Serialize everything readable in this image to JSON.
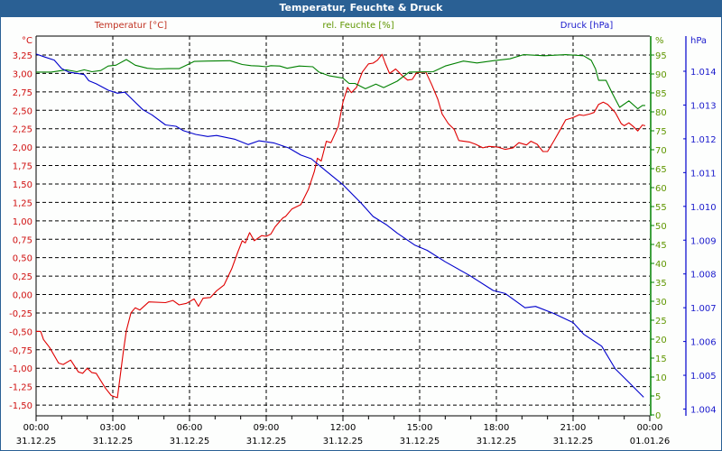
{
  "window": {
    "title": "Temperatur, Feuchte & Druck"
  },
  "colors": {
    "temperature": "#e00000",
    "temperature_axis": "#d01010",
    "humidity": "#008000",
    "humidity_axis": "#5f9600",
    "pressure": "#0000cc",
    "pressure_axis": "#1a1acc",
    "titlebar": "#2a6094"
  },
  "chart_data": {
    "type": "line",
    "title": "Temperatur, Feuchte & Druck",
    "series_labels": {
      "temperature": "Temperatur [°C]",
      "humidity": "rel. Feuchte [%]",
      "pressure": "Druck [hPa]"
    },
    "x_axis": {
      "unit": "hours since 31.12.25 00:00",
      "range": [
        0,
        24
      ],
      "ticks": [
        {
          "h": 0,
          "time": "00:00",
          "date": "31.12.25"
        },
        {
          "h": 3,
          "time": "03:00",
          "date": "31.12.25"
        },
        {
          "h": 6,
          "time": "06:00",
          "date": "31.12.25"
        },
        {
          "h": 9,
          "time": "09:00",
          "date": "31.12.25"
        },
        {
          "h": 12,
          "time": "12:00",
          "date": "31.12.25"
        },
        {
          "h": 15,
          "time": "15:00",
          "date": "31.12.25"
        },
        {
          "h": 18,
          "time": "18:00",
          "date": "31.12.25"
        },
        {
          "h": 21,
          "time": "21:00",
          "date": "31.12.25"
        },
        {
          "h": 24,
          "time": "00:00",
          "date": "01.01.26"
        }
      ]
    },
    "y_left": {
      "unit_label": "°C",
      "range": [
        -1.65,
        3.5
      ],
      "ticks": [
        {
          "v": 3.25,
          "label": "3,25"
        },
        {
          "v": 3.0,
          "label": "3,00"
        },
        {
          "v": 2.75,
          "label": "2,75"
        },
        {
          "v": 2.5,
          "label": "2,50"
        },
        {
          "v": 2.25,
          "label": "2,25"
        },
        {
          "v": 2.0,
          "label": "2,00"
        },
        {
          "v": 1.75,
          "label": "1,75"
        },
        {
          "v": 1.5,
          "label": "1,50"
        },
        {
          "v": 1.25,
          "label": "1,25"
        },
        {
          "v": 1.0,
          "label": "1,00"
        },
        {
          "v": 0.75,
          "label": "0,75"
        },
        {
          "v": 0.5,
          "label": "0,50"
        },
        {
          "v": 0.25,
          "label": "0,25"
        },
        {
          "v": 0.0,
          "label": "0,00"
        },
        {
          "v": -0.25,
          "label": "-0,25"
        },
        {
          "v": -0.5,
          "label": "-0,50"
        },
        {
          "v": -0.75,
          "label": "-0,75"
        },
        {
          "v": -1.0,
          "label": "-1,00"
        },
        {
          "v": -1.25,
          "label": "-1,25"
        },
        {
          "v": -1.5,
          "label": "-1,50"
        }
      ]
    },
    "y_right_humidity": {
      "unit_label": "%",
      "range": [
        0,
        100
      ],
      "ticks": [
        "95",
        "90",
        "85",
        "80",
        "75",
        "70",
        "65",
        "60",
        "55",
        "50",
        "45",
        "40",
        "35",
        "30",
        "25",
        "20",
        "15",
        "10",
        "5",
        "0"
      ]
    },
    "y_right_pressure": {
      "unit_label": "hPa",
      "range": [
        1003.8,
        1015.0
      ],
      "ticks": [
        {
          "v": 1014,
          "label": "1.014"
        },
        {
          "v": 1013,
          "label": "1.013"
        },
        {
          "v": 1012,
          "label": "1.012"
        },
        {
          "v": 1011,
          "label": "1.011"
        },
        {
          "v": 1010,
          "label": "1.010"
        },
        {
          "v": 1009,
          "label": "1.009"
        },
        {
          "v": 1008,
          "label": "1.008"
        },
        {
          "v": 1007,
          "label": "1.007"
        },
        {
          "v": 1006,
          "label": "1.006"
        },
        {
          "v": 1005,
          "label": "1.005"
        },
        {
          "v": 1004,
          "label": "1.004"
        }
      ]
    },
    "grid": true,
    "series": [
      {
        "name": "temperature",
        "values": [
          [
            0,
            -0.5
          ],
          [
            0.18,
            -0.5
          ],
          [
            0.29,
            -0.61
          ],
          [
            0.53,
            -0.72
          ],
          [
            0.88,
            -0.93
          ],
          [
            1.06,
            -0.95
          ],
          [
            1.35,
            -0.89
          ],
          [
            1.65,
            -1.05
          ],
          [
            1.82,
            -1.07
          ],
          [
            2.0,
            -1.0
          ],
          [
            2.18,
            -1.06
          ],
          [
            2.35,
            -1.07
          ],
          [
            2.71,
            -1.27
          ],
          [
            2.94,
            -1.37
          ],
          [
            3.18,
            -1.4
          ],
          [
            3.41,
            -0.78
          ],
          [
            3.53,
            -0.49
          ],
          [
            3.71,
            -0.25
          ],
          [
            3.88,
            -0.18
          ],
          [
            4.06,
            -0.21
          ],
          [
            4.41,
            -0.1
          ],
          [
            5.06,
            -0.11
          ],
          [
            5.35,
            -0.08
          ],
          [
            5.59,
            -0.14
          ],
          [
            5.88,
            -0.12
          ],
          [
            6.18,
            -0.06
          ],
          [
            6.35,
            -0.16
          ],
          [
            6.53,
            -0.05
          ],
          [
            6.82,
            -0.04
          ],
          [
            7.06,
            0.05
          ],
          [
            7.35,
            0.13
          ],
          [
            7.65,
            0.35
          ],
          [
            7.88,
            0.57
          ],
          [
            8.06,
            0.73
          ],
          [
            8.18,
            0.7
          ],
          [
            8.35,
            0.84
          ],
          [
            8.53,
            0.73
          ],
          [
            8.82,
            0.8
          ],
          [
            9.0,
            0.79
          ],
          [
            9.18,
            0.82
          ],
          [
            9.35,
            0.92
          ],
          [
            9.65,
            1.04
          ],
          [
            9.76,
            1.06
          ],
          [
            10.0,
            1.16
          ],
          [
            10.35,
            1.22
          ],
          [
            10.65,
            1.43
          ],
          [
            10.88,
            1.67
          ],
          [
            11.0,
            1.85
          ],
          [
            11.15,
            1.81
          ],
          [
            11.35,
            2.08
          ],
          [
            11.53,
            2.06
          ],
          [
            11.82,
            2.28
          ],
          [
            12.0,
            2.61
          ],
          [
            12.18,
            2.81
          ],
          [
            12.33,
            2.74
          ],
          [
            12.53,
            2.81
          ],
          [
            12.76,
            3.02
          ],
          [
            13.0,
            3.13
          ],
          [
            13.18,
            3.14
          ],
          [
            13.35,
            3.18
          ],
          [
            13.53,
            3.26
          ],
          [
            13.65,
            3.14
          ],
          [
            13.82,
            3.0
          ],
          [
            14.06,
            3.06
          ],
          [
            14.35,
            2.96
          ],
          [
            14.53,
            2.91
          ],
          [
            14.71,
            2.92
          ],
          [
            14.88,
            3.01
          ],
          [
            15.24,
            3.02
          ],
          [
            15.47,
            2.85
          ],
          [
            15.71,
            2.65
          ],
          [
            15.88,
            2.45
          ],
          [
            16.12,
            2.32
          ],
          [
            16.35,
            2.24
          ],
          [
            16.53,
            2.09
          ],
          [
            16.94,
            2.07
          ],
          [
            17.18,
            2.04
          ],
          [
            17.47,
            1.99
          ],
          [
            17.71,
            2.01
          ],
          [
            18.06,
            2.0
          ],
          [
            18.35,
            1.97
          ],
          [
            18.65,
            1.99
          ],
          [
            18.88,
            2.06
          ],
          [
            19.18,
            2.03
          ],
          [
            19.35,
            2.08
          ],
          [
            19.59,
            2.04
          ],
          [
            19.82,
            1.94
          ],
          [
            20.0,
            1.94
          ],
          [
            20.24,
            2.08
          ],
          [
            20.47,
            2.22
          ],
          [
            20.71,
            2.37
          ],
          [
            21.0,
            2.4
          ],
          [
            21.24,
            2.44
          ],
          [
            21.41,
            2.43
          ],
          [
            21.65,
            2.45
          ],
          [
            21.82,
            2.47
          ],
          [
            22.0,
            2.58
          ],
          [
            22.18,
            2.61
          ],
          [
            22.35,
            2.58
          ],
          [
            22.65,
            2.47
          ],
          [
            22.88,
            2.32
          ],
          [
            23.0,
            2.29
          ],
          [
            23.18,
            2.33
          ],
          [
            23.35,
            2.28
          ],
          [
            23.53,
            2.22
          ],
          [
            23.71,
            2.3
          ],
          [
            23.82,
            2.29
          ]
        ]
      },
      {
        "name": "humidity",
        "values": [
          [
            0,
            90.5
          ],
          [
            0.59,
            90.5
          ],
          [
            1.18,
            91.1
          ],
          [
            1.59,
            90.6
          ],
          [
            1.88,
            91.1
          ],
          [
            2.18,
            90.6
          ],
          [
            2.53,
            90.9
          ],
          [
            2.82,
            92.1
          ],
          [
            3.12,
            92.3
          ],
          [
            3.53,
            93.8
          ],
          [
            3.88,
            92.3
          ],
          [
            4.35,
            91.5
          ],
          [
            4.71,
            91.3
          ],
          [
            5.18,
            91.4
          ],
          [
            5.59,
            91.4
          ],
          [
            5.88,
            92.3
          ],
          [
            6.18,
            93.3
          ],
          [
            6.71,
            93.4
          ],
          [
            7.59,
            93.5
          ],
          [
            8.06,
            92.5
          ],
          [
            8.41,
            92.2
          ],
          [
            8.71,
            92.1
          ],
          [
            9.0,
            91.9
          ],
          [
            9.18,
            92.2
          ],
          [
            9.53,
            92.1
          ],
          [
            9.82,
            91.5
          ],
          [
            10.29,
            92.1
          ],
          [
            10.82,
            91.9
          ],
          [
            11.06,
            90.5
          ],
          [
            11.47,
            89.5
          ],
          [
            12.0,
            88.9
          ],
          [
            12.24,
            87.5
          ],
          [
            12.47,
            87.5
          ],
          [
            12.88,
            86.1
          ],
          [
            13.29,
            87.3
          ],
          [
            13.59,
            86.4
          ],
          [
            14.12,
            88.1
          ],
          [
            14.59,
            90.5
          ],
          [
            15.53,
            90.6
          ],
          [
            16.0,
            92.1
          ],
          [
            16.71,
            93.4
          ],
          [
            17.24,
            92.9
          ],
          [
            17.88,
            93.5
          ],
          [
            18.53,
            94.0
          ],
          [
            19.06,
            95.1
          ],
          [
            19.88,
            94.8
          ],
          [
            20.71,
            95.1
          ],
          [
            21.41,
            94.8
          ],
          [
            21.71,
            93.6
          ],
          [
            21.88,
            91.3
          ],
          [
            22.0,
            88.3
          ],
          [
            22.29,
            88.3
          ],
          [
            22.53,
            84.9
          ],
          [
            22.82,
            81.2
          ],
          [
            23.18,
            82.9
          ],
          [
            23.53,
            80.8
          ],
          [
            23.71,
            81.7
          ],
          [
            23.82,
            81.7
          ]
        ]
      },
      {
        "name": "pressure",
        "values": [
          [
            0,
            1014.51
          ],
          [
            0.35,
            1014.42
          ],
          [
            0.71,
            1014.33
          ],
          [
            1.0,
            1014.08
          ],
          [
            1.29,
            1013.97
          ],
          [
            1.65,
            1013.93
          ],
          [
            1.88,
            1013.9
          ],
          [
            2.06,
            1013.72
          ],
          [
            2.35,
            1013.63
          ],
          [
            2.82,
            1013.44
          ],
          [
            3.18,
            1013.35
          ],
          [
            3.47,
            1013.38
          ],
          [
            3.76,
            1013.17
          ],
          [
            4.18,
            1012.86
          ],
          [
            4.53,
            1012.71
          ],
          [
            5.06,
            1012.41
          ],
          [
            5.47,
            1012.37
          ],
          [
            5.76,
            1012.24
          ],
          [
            6.24,
            1012.13
          ],
          [
            6.71,
            1012.07
          ],
          [
            7.06,
            1012.1
          ],
          [
            7.76,
            1011.99
          ],
          [
            8.29,
            1011.83
          ],
          [
            8.71,
            1011.94
          ],
          [
            9.29,
            1011.88
          ],
          [
            9.88,
            1011.73
          ],
          [
            10.35,
            1011.52
          ],
          [
            10.76,
            1011.41
          ],
          [
            11.29,
            1011.08
          ],
          [
            12.0,
            1010.64
          ],
          [
            12.71,
            1010.1
          ],
          [
            13.18,
            1009.7
          ],
          [
            13.71,
            1009.45
          ],
          [
            14.12,
            1009.21
          ],
          [
            14.82,
            1008.85
          ],
          [
            15.29,
            1008.7
          ],
          [
            16.0,
            1008.36
          ],
          [
            16.94,
            1007.96
          ],
          [
            17.88,
            1007.51
          ],
          [
            18.35,
            1007.42
          ],
          [
            19.12,
            1007.0
          ],
          [
            19.53,
            1007.04
          ],
          [
            20.24,
            1006.83
          ],
          [
            21.0,
            1006.56
          ],
          [
            21.41,
            1006.22
          ],
          [
            22.12,
            1005.86
          ],
          [
            22.65,
            1005.19
          ],
          [
            23.18,
            1004.79
          ],
          [
            23.76,
            1004.35
          ]
        ]
      }
    ]
  }
}
